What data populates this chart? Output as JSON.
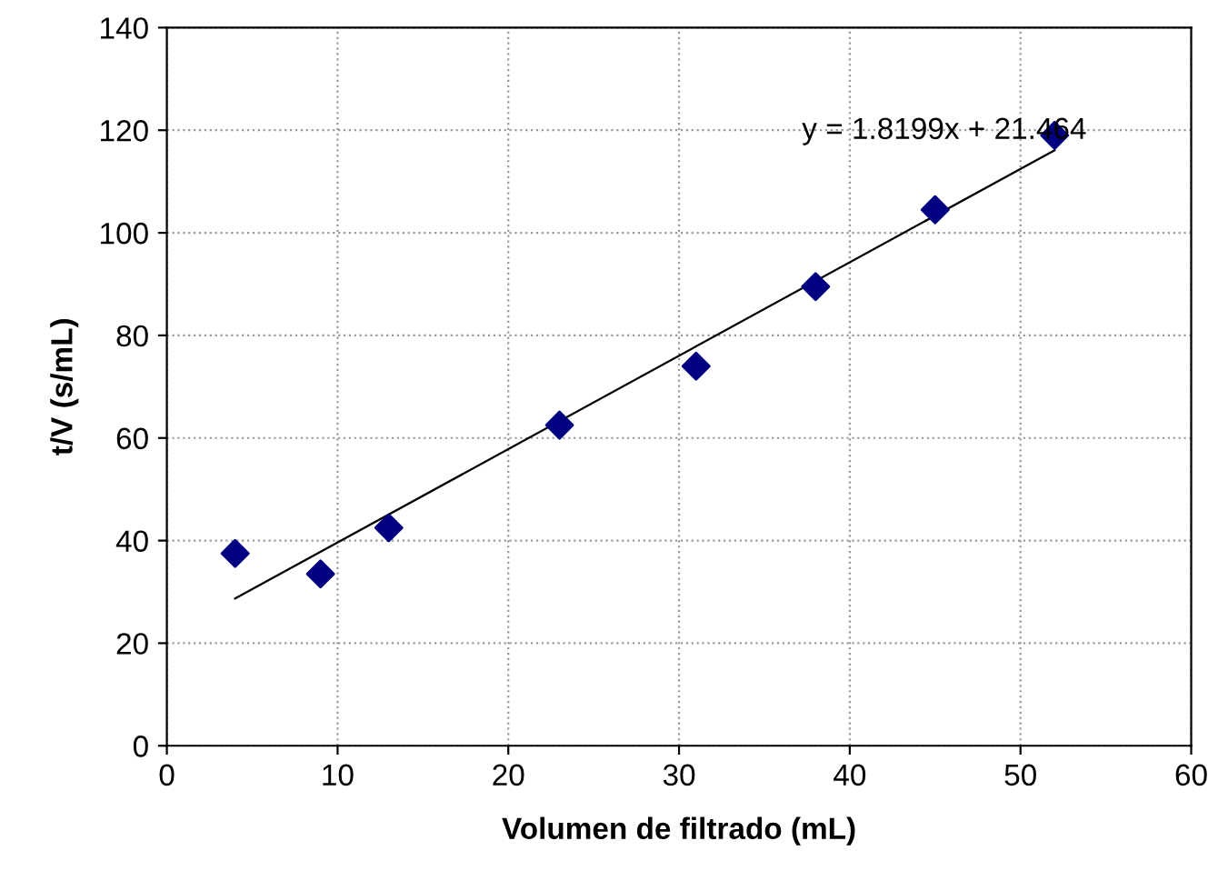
{
  "chart_data": {
    "type": "scatter",
    "xlabel": "Volumen de filtrado (mL)",
    "ylabel": "t/V (s/mL)",
    "series": [
      {
        "color": "#000080",
        "marker": "diamond",
        "x": [
          4,
          9,
          13,
          23,
          31,
          38,
          45,
          52
        ],
        "values": [
          37.5,
          33.5,
          42.5,
          62.5,
          74,
          89.5,
          104.5,
          119
        ]
      },
      {
        "type": "line",
        "color": "#000000",
        "marker": "none",
        "x": [
          4,
          52
        ],
        "values": [
          28.7,
          116.1
        ]
      }
    ],
    "annotations": [
      "y = 1.8199x + 21.464"
    ],
    "xlim": [
      0,
      60
    ],
    "xticks": [
      0,
      10,
      20,
      30,
      40,
      50,
      60
    ],
    "ylim": [
      0,
      140
    ],
    "yticks": [
      0,
      20,
      40,
      60,
      80,
      100,
      120,
      140
    ],
    "grid": true,
    "legend": false
  }
}
